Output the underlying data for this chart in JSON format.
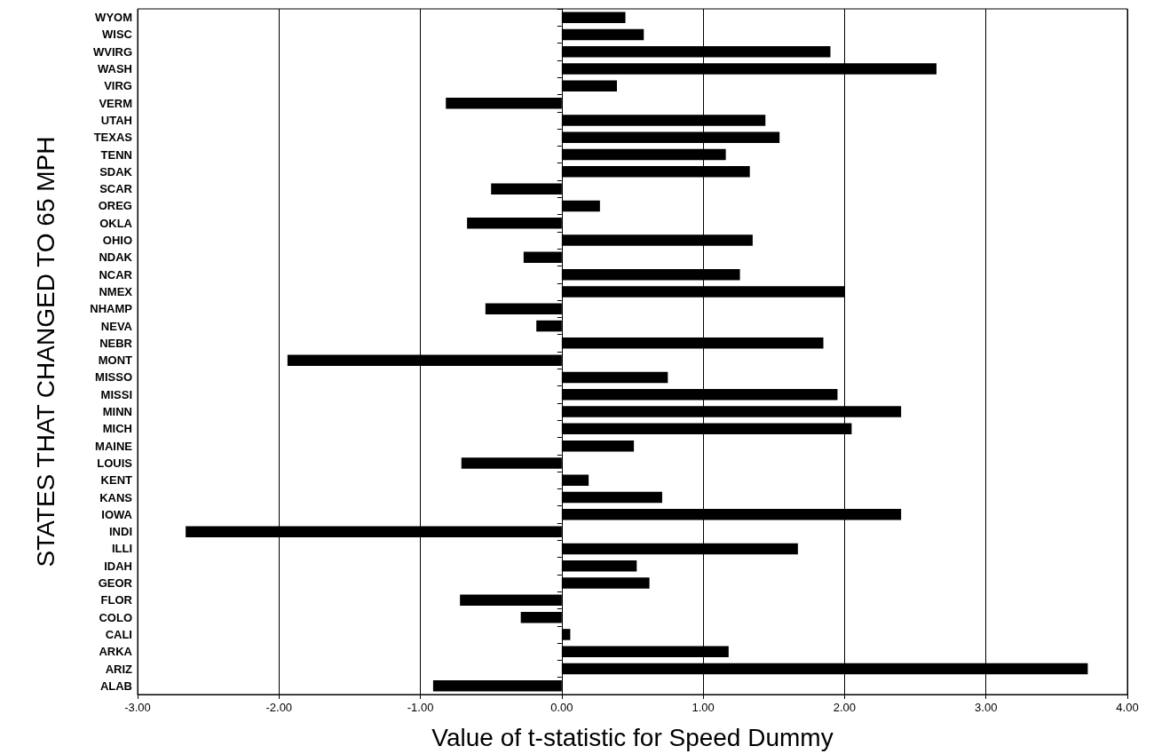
{
  "chart_data": {
    "type": "bar",
    "orientation": "horizontal",
    "xlabel": "Value of t-statistic for Speed Dummy",
    "ylabel": "STATES THAT CHANGED TO 65 MPH",
    "categories": [
      "WYOM",
      "WISC",
      "WVIRG",
      "WASH",
      "VIRG",
      "VERM",
      "UTAH",
      "TEXAS",
      "TENN",
      "SDAK",
      "SCAR",
      "OREG",
      "OKLA",
      "OHIO",
      "NDAK",
      "NCAR",
      "NMEX",
      "NHAMP",
      "NEVA",
      "NEBR",
      "MONT",
      "MISSO",
      "MISSI",
      "MINN",
      "MICH",
      "MAINE",
      "LOUIS",
      "KENT",
      "KANS",
      "IOWA",
      "INDI",
      "ILLI",
      "IDAH",
      "GEOR",
      "FLOR",
      "COLO",
      "CALI",
      "ARKA",
      "ARIZ",
      "ALAB"
    ],
    "values": [
      0.45,
      0.58,
      1.9,
      2.65,
      0.39,
      -0.82,
      1.44,
      1.54,
      1.16,
      1.33,
      -0.5,
      0.27,
      -0.67,
      1.35,
      -0.27,
      1.26,
      2.0,
      -0.54,
      -0.18,
      1.85,
      -1.94,
      0.75,
      1.95,
      2.4,
      2.05,
      0.51,
      -0.71,
      0.19,
      0.71,
      2.4,
      -2.66,
      1.67,
      0.53,
      0.62,
      -0.72,
      -0.29,
      0.06,
      1.18,
      3.72,
      -0.91
    ],
    "color": "#000000",
    "xlim": [
      -3,
      4
    ],
    "xticks": [
      {
        "value": -3,
        "label": "-3.00"
      },
      {
        "value": -2,
        "label": "-2.00"
      },
      {
        "value": -1,
        "label": "-1.00"
      },
      {
        "value": 0,
        "label": "0.00"
      },
      {
        "value": 1,
        "label": "1.00"
      },
      {
        "value": 2,
        "label": "2.00"
      },
      {
        "value": 3,
        "label": "3.00"
      },
      {
        "value": 4,
        "label": "4.00"
      }
    ],
    "grid": "x"
  }
}
